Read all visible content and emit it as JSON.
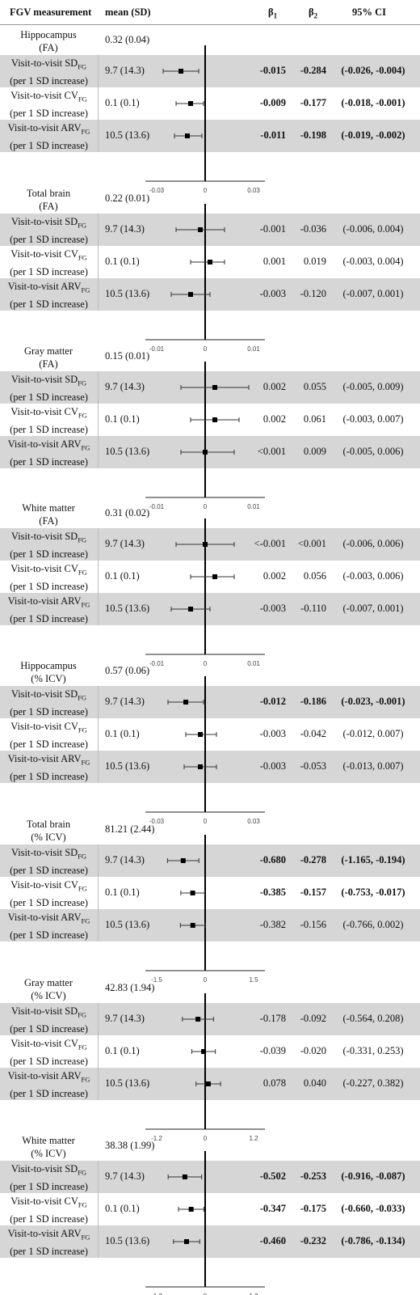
{
  "header": {
    "measurement": "FGV measurement",
    "mean": "mean (SD)",
    "b1": "β",
    "b1_sub": "1",
    "b2": "β",
    "b2_sub": "2",
    "ci": "95% CI"
  },
  "row_prefix": "Visit-to-visit ",
  "row_suffix": "(per 1 SD increase)",
  "chart_data": [
    {
      "type": "forest",
      "title_line1": "Hippocampus",
      "title_line2": "(FA)",
      "mean": "0.32 (0.04)",
      "xlim": [
        -0.03,
        0.03
      ],
      "ticks": [
        "-0.03",
        "0",
        "0.03"
      ],
      "rows": [
        {
          "metric": "SD",
          "sub": "FG",
          "mean": "9.7 (14.3)",
          "b1": "-0.015",
          "b2": "-0.284",
          "ci": "(-0.026, -0.004)",
          "bold": true,
          "estimate": -0.015,
          "lower": -0.026,
          "upper": -0.004
        },
        {
          "metric": "CV",
          "sub": "FG",
          "mean": "0.1 (0.1)",
          "b1": "-0.009",
          "b2": "-0.177",
          "ci": "(-0.018, -0.001)",
          "bold": true,
          "estimate": -0.009,
          "lower": -0.018,
          "upper": -0.001
        },
        {
          "metric": "ARV",
          "sub": "FG",
          "mean": "10.5 (13.6)",
          "b1": "-0.011",
          "b2": "-0.198",
          "ci": "(-0.019, -0.002)",
          "bold": true,
          "estimate": -0.011,
          "lower": -0.019,
          "upper": -0.002
        }
      ]
    },
    {
      "type": "forest",
      "title_line1": "Total brain",
      "title_line2": "(FA)",
      "mean": "0.22 (0.01)",
      "xlim": [
        -0.01,
        0.01
      ],
      "ticks": [
        "-0.01",
        "0",
        "0.01"
      ],
      "rows": [
        {
          "metric": "SD",
          "sub": "FG",
          "mean": "9.7 (14.3)",
          "b1": "-0.001",
          "b2": "-0.036",
          "ci": "(-0.006, 0.004)",
          "bold": false,
          "estimate": -0.001,
          "lower": -0.006,
          "upper": 0.004
        },
        {
          "metric": "CV",
          "sub": "FG",
          "mean": "0.1 (0.1)",
          "b1": "0.001",
          "b2": "0.019",
          "ci": "(-0.003, 0.004)",
          "bold": false,
          "estimate": 0.001,
          "lower": -0.003,
          "upper": 0.004
        },
        {
          "metric": "ARV",
          "sub": "FG",
          "mean": "10.5 (13.6)",
          "b1": "-0.003",
          "b2": "-0.120",
          "ci": "(-0.007, 0.001)",
          "bold": false,
          "estimate": -0.003,
          "lower": -0.007,
          "upper": 0.001
        }
      ]
    },
    {
      "type": "forest",
      "title_line1": "Gray matter",
      "title_line2": "(FA)",
      "mean": "0.15 (0.01)",
      "xlim": [
        -0.01,
        0.01
      ],
      "ticks": [
        "-0.01",
        "0",
        "0.01"
      ],
      "rows": [
        {
          "metric": "SD",
          "sub": "FG",
          "mean": "9.7 (14.3)",
          "b1": "0.002",
          "b2": "0.055",
          "ci": "(-0.005, 0.009)",
          "bold": false,
          "estimate": 0.002,
          "lower": -0.005,
          "upper": 0.009
        },
        {
          "metric": "CV",
          "sub": "FG",
          "mean": "0.1 (0.1)",
          "b1": "0.002",
          "b2": "0.061",
          "ci": "(-0.003, 0.007)",
          "bold": false,
          "estimate": 0.002,
          "lower": -0.003,
          "upper": 0.007
        },
        {
          "metric": "ARV",
          "sub": "FG",
          "mean": "10.5 (13.6)",
          "b1": "<0.001",
          "b2": "0.009",
          "ci": "(-0.005, 0.006)",
          "bold": false,
          "estimate": 0.0,
          "lower": -0.005,
          "upper": 0.006
        }
      ]
    },
    {
      "type": "forest",
      "title_line1": "White matter",
      "title_line2": "(FA)",
      "mean": "0.31 (0.02)",
      "xlim": [
        -0.01,
        0.01
      ],
      "ticks": [
        "-0.01",
        "0",
        "0.01"
      ],
      "rows": [
        {
          "metric": "SD",
          "sub": "FG",
          "mean": "9.7 (14.3)",
          "b1": "<-0.001",
          "b2": "<0.001",
          "ci": "(-0.006, 0.006)",
          "bold": false,
          "estimate": 0.0,
          "lower": -0.006,
          "upper": 0.006
        },
        {
          "metric": "CV",
          "sub": "FG",
          "mean": "0.1 (0.1)",
          "b1": "0.002",
          "b2": "0.056",
          "ci": "(-0.003, 0.006)",
          "bold": false,
          "estimate": 0.002,
          "lower": -0.003,
          "upper": 0.006
        },
        {
          "metric": "ARV",
          "sub": "FG",
          "mean": "10.5 (13.6)",
          "b1": "-0.003",
          "b2": "-0.110",
          "ci": "(-0.007, 0.001)",
          "bold": false,
          "estimate": -0.003,
          "lower": -0.007,
          "upper": 0.001
        }
      ]
    },
    {
      "type": "forest",
      "title_line1": "Hippocampus",
      "title_line2": "(% ICV)",
      "mean": "0.57 (0.06)",
      "xlim": [
        -0.03,
        0.03
      ],
      "ticks": [
        "-0.03",
        "0",
        "0.03"
      ],
      "rows": [
        {
          "metric": "SD",
          "sub": "FG",
          "mean": "9.7 (14.3)",
          "b1": "-0.012",
          "b2": "-0.186",
          "ci": "(-0.023, -0.001)",
          "bold": true,
          "estimate": -0.012,
          "lower": -0.023,
          "upper": -0.001
        },
        {
          "metric": "CV",
          "sub": "FG",
          "mean": "0.1 (0.1)",
          "b1": "-0.003",
          "b2": "-0.042",
          "ci": "(-0.012, 0.007)",
          "bold": false,
          "estimate": -0.003,
          "lower": -0.012,
          "upper": 0.007
        },
        {
          "metric": "ARV",
          "sub": "FG",
          "mean": "10.5 (13.6)",
          "b1": "-0.003",
          "b2": "-0.053",
          "ci": "(-0.013, 0.007)",
          "bold": false,
          "estimate": -0.003,
          "lower": -0.013,
          "upper": 0.007
        }
      ]
    },
    {
      "type": "forest",
      "title_line1": "Total brain",
      "title_line2": "(% ICV)",
      "mean": "81.21 (2.44)",
      "xlim": [
        -1.5,
        1.5
      ],
      "ticks": [
        "-1.5",
        "0",
        "1.5"
      ],
      "rows": [
        {
          "metric": "SD",
          "sub": "FG",
          "mean": "9.7 (14.3)",
          "b1": "-0.680",
          "b2": "-0.278",
          "ci": "(-1.165, -0.194)",
          "bold": true,
          "estimate": -0.68,
          "lower": -1.165,
          "upper": -0.194
        },
        {
          "metric": "CV",
          "sub": "FG",
          "mean": "0.1 (0.1)",
          "b1": "-0.385",
          "b2": "-0.157",
          "ci": "(-0.753, -0.017)",
          "bold": true,
          "estimate": -0.385,
          "lower": -0.753,
          "upper": -0.017
        },
        {
          "metric": "ARV",
          "sub": "FG",
          "mean": "10.5 (13.6)",
          "b1": "-0.382",
          "b2": "-0.156",
          "ci": "(-0.766, 0.002)",
          "bold": false,
          "estimate": -0.382,
          "lower": -0.766,
          "upper": 0.002
        }
      ]
    },
    {
      "type": "forest",
      "title_line1": "Gray matter",
      "title_line2": "(% ICV)",
      "mean": "42.83 (1.94)",
      "xlim": [
        -1.2,
        1.2
      ],
      "ticks": [
        "-1.2",
        "0",
        "1.2"
      ],
      "rows": [
        {
          "metric": "SD",
          "sub": "FG",
          "mean": "9.7 (14.3)",
          "b1": "-0.178",
          "b2": "-0.092",
          "ci": "(-0.564, 0.208)",
          "bold": false,
          "estimate": -0.178,
          "lower": -0.564,
          "upper": 0.208
        },
        {
          "metric": "CV",
          "sub": "FG",
          "mean": "0.1 (0.1)",
          "b1": "-0.039",
          "b2": "-0.020",
          "ci": "(-0.331, 0.253)",
          "bold": false,
          "estimate": -0.039,
          "lower": -0.331,
          "upper": 0.253
        },
        {
          "metric": "ARV",
          "sub": "FG",
          "mean": "10.5 (13.6)",
          "b1": "0.078",
          "b2": "0.040",
          "ci": "(-0.227, 0.382)",
          "bold": false,
          "estimate": 0.078,
          "lower": -0.227,
          "upper": 0.382
        }
      ]
    },
    {
      "type": "forest",
      "title_line1": "White matter",
      "title_line2": "(% ICV)",
      "mean": "38.38 (1.99)",
      "xlim": [
        -1.2,
        1.2
      ],
      "ticks": [
        "-1.2",
        "0",
        "1.2"
      ],
      "rows": [
        {
          "metric": "SD",
          "sub": "FG",
          "mean": "9.7 (14.3)",
          "b1": "-0.502",
          "b2": "-0.253",
          "ci": "(-0.916, -0.087)",
          "bold": true,
          "estimate": -0.502,
          "lower": -0.916,
          "upper": -0.087
        },
        {
          "metric": "CV",
          "sub": "FG",
          "mean": "0.1 (0.1)",
          "b1": "-0.347",
          "b2": "-0.175",
          "ci": "(-0.660, -0.033)",
          "bold": true,
          "estimate": -0.347,
          "lower": -0.66,
          "upper": -0.033
        },
        {
          "metric": "ARV",
          "sub": "FG",
          "mean": "10.5 (13.6)",
          "b1": "-0.460",
          "b2": "-0.232",
          "ci": "(-0.786, -0.134)",
          "bold": true,
          "estimate": -0.46,
          "lower": -0.786,
          "upper": -0.134
        }
      ]
    }
  ]
}
